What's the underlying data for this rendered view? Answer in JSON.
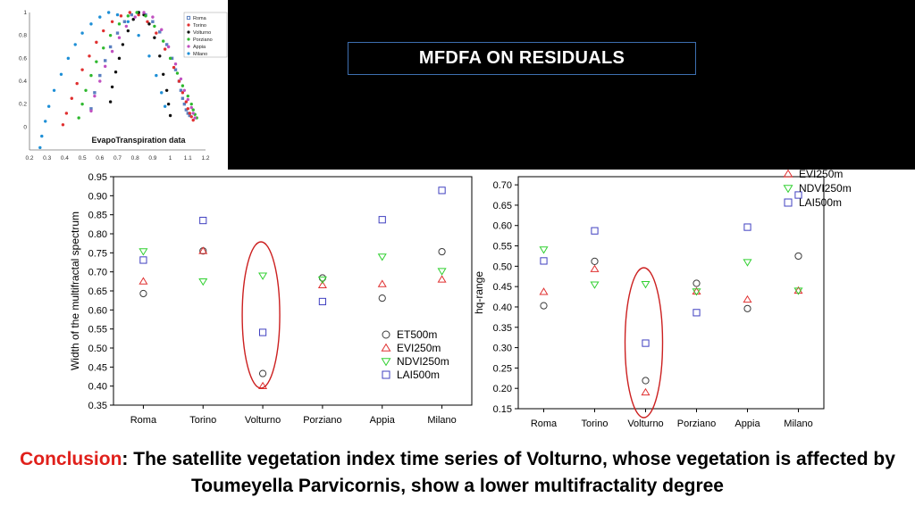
{
  "slide": {
    "title": "MFDFA ON RESIDUALS",
    "conclusion_label": "Conclusion",
    "conclusion_text": ": The satellite vegetation index time series of Volturno, whose vegetation is affected by Toumeyella Parvicornis, show a lower multifractality degree"
  },
  "colors": {
    "ET500m": "#3a3a3a",
    "EVI250m": "#e03030",
    "NDVI250m": "#30d030",
    "LAI500m": "#4040c0",
    "highlight": "#cc2020"
  },
  "chart_data": [
    {
      "id": "inset",
      "type": "scatter",
      "title": "EvapoTranspiration data",
      "xlim": [
        0.2,
        1.2
      ],
      "ylim": [
        -0.2,
        1
      ],
      "xticks": [
        "0.2",
        "0.3",
        "0.4",
        "0.5",
        "0.6",
        "0.7",
        "0.8",
        "0.9",
        "1",
        "1.1",
        "1.2"
      ],
      "yticks": [
        "0",
        "0.2",
        "0.4",
        "0.6",
        "0.8",
        "1"
      ],
      "ytick_values": [
        0,
        0.2,
        0.4,
        0.6,
        0.8,
        1
      ],
      "legend_placement": "top-right",
      "series": [
        {
          "name": "Roma",
          "color": "#5a7fc0",
          "marker": "square",
          "x": [
            0.55,
            0.57,
            0.6,
            0.63,
            0.66,
            0.7,
            0.74,
            0.78,
            0.82,
            0.86,
            0.9,
            0.94,
            0.98,
            1.01,
            1.03,
            1.05,
            1.06,
            1.07,
            1.08,
            1.09,
            1.1,
            1.11
          ],
          "y": [
            0.16,
            0.3,
            0.45,
            0.58,
            0.7,
            0.82,
            0.92,
            0.98,
            1.0,
            0.98,
            0.92,
            0.83,
            0.72,
            0.6,
            0.5,
            0.4,
            0.32,
            0.25,
            0.2,
            0.15,
            0.12,
            0.1
          ]
        },
        {
          "name": "Torino",
          "color": "#e03030",
          "marker": "circle",
          "x": [
            0.39,
            0.41,
            0.44,
            0.47,
            0.5,
            0.54,
            0.58,
            0.62,
            0.67,
            0.72,
            0.77,
            0.82,
            0.87,
            0.92,
            0.97,
            1.02,
            1.05,
            1.07,
            1.09,
            1.1,
            1.11,
            1.12,
            1.13
          ],
          "y": [
            0.02,
            0.12,
            0.25,
            0.38,
            0.5,
            0.62,
            0.74,
            0.84,
            0.92,
            0.97,
            1.0,
            0.98,
            0.92,
            0.82,
            0.68,
            0.52,
            0.4,
            0.3,
            0.22,
            0.16,
            0.12,
            0.09,
            0.06
          ]
        },
        {
          "name": "Volturno",
          "color": "#111111",
          "marker": "circle",
          "x": [
            0.66,
            0.67,
            0.69,
            0.71,
            0.73,
            0.76,
            0.79,
            0.82,
            0.85,
            0.88,
            0.91,
            0.94,
            0.96,
            0.98,
            0.99,
            1.0
          ],
          "y": [
            0.22,
            0.35,
            0.48,
            0.6,
            0.72,
            0.84,
            0.94,
            1.0,
            0.98,
            0.9,
            0.78,
            0.62,
            0.46,
            0.32,
            0.2,
            0.1
          ]
        },
        {
          "name": "Porziano",
          "color": "#2eb82e",
          "marker": "circle",
          "x": [
            0.48,
            0.5,
            0.52,
            0.55,
            0.58,
            0.62,
            0.66,
            0.71,
            0.76,
            0.81,
            0.86,
            0.91,
            0.96,
            1.0,
            1.04,
            1.07,
            1.1,
            1.12,
            1.13,
            1.14,
            1.15
          ],
          "y": [
            0.08,
            0.2,
            0.32,
            0.45,
            0.57,
            0.69,
            0.8,
            0.9,
            0.97,
            1.0,
            0.97,
            0.88,
            0.75,
            0.6,
            0.47,
            0.36,
            0.27,
            0.2,
            0.15,
            0.11,
            0.08
          ]
        },
        {
          "name": "Appia",
          "color": "#c050c0",
          "marker": "circle",
          "x": [
            0.55,
            0.57,
            0.6,
            0.63,
            0.67,
            0.71,
            0.75,
            0.8,
            0.85,
            0.9,
            0.95,
            0.99,
            1.03,
            1.06,
            1.08,
            1.1,
            1.12,
            1.13,
            1.14
          ],
          "y": [
            0.14,
            0.27,
            0.4,
            0.53,
            0.66,
            0.78,
            0.88,
            0.96,
            1.0,
            0.96,
            0.85,
            0.7,
            0.55,
            0.42,
            0.32,
            0.24,
            0.17,
            0.12,
            0.08
          ]
        },
        {
          "name": "Milano",
          "color": "#1e8fd6",
          "marker": "circle",
          "x": [
            0.26,
            0.27,
            0.29,
            0.31,
            0.34,
            0.38,
            0.42,
            0.46,
            0.5,
            0.55,
            0.6,
            0.65,
            0.7,
            0.76,
            0.82,
            0.88,
            0.92,
            0.95,
            0.97
          ],
          "y": [
            -0.18,
            -0.08,
            0.05,
            0.18,
            0.32,
            0.46,
            0.6,
            0.72,
            0.82,
            0.9,
            0.96,
            1.0,
            0.98,
            0.92,
            0.8,
            0.62,
            0.45,
            0.3,
            0.18
          ]
        }
      ]
    },
    {
      "id": "width",
      "type": "scatter",
      "ylabel": "Width of the multifractal spectrum",
      "categories": [
        "Roma",
        "Torino",
        "Volturno",
        "Porziano",
        "Appia",
        "Milano"
      ],
      "ylim": [
        0.35,
        0.95
      ],
      "yticks": [
        "0.35",
        "0.40",
        "0.45",
        "0.50",
        "0.55",
        "0.60",
        "0.65",
        "0.70",
        "0.75",
        "0.80",
        "0.85",
        "0.90",
        "0.95"
      ],
      "ytick_values": [
        0.35,
        0.4,
        0.45,
        0.5,
        0.55,
        0.6,
        0.65,
        0.7,
        0.75,
        0.8,
        0.85,
        0.9,
        0.95
      ],
      "legend_placement": "bottom-right",
      "highlight_category": "Volturno",
      "series": [
        {
          "name": "ET500m",
          "marker": "circle",
          "values": [
            0.643,
            0.755,
            0.433,
            0.684,
            0.631,
            0.753
          ]
        },
        {
          "name": "EVI250m",
          "marker": "triangle-up",
          "values": [
            0.675,
            0.755,
            0.4,
            0.665,
            0.668,
            0.68
          ]
        },
        {
          "name": "NDVI250m",
          "marker": "triangle-down",
          "values": [
            0.754,
            0.675,
            0.69,
            0.68,
            0.74,
            0.702
          ]
        },
        {
          "name": "LAI500m",
          "marker": "square",
          "values": [
            0.731,
            0.835,
            0.541,
            0.622,
            0.837,
            0.914
          ]
        }
      ]
    },
    {
      "id": "hq",
      "type": "scatter",
      "ylabel": "hq-range",
      "categories": [
        "Roma",
        "Torino",
        "Volturno",
        "Porziano",
        "Appia",
        "Milano"
      ],
      "ylim": [
        0.15,
        0.72
      ],
      "yticks": [
        "0.15",
        "0.20",
        "0.25",
        "0.30",
        "0.35",
        "0.40",
        "0.45",
        "0.50",
        "0.55",
        "0.60",
        "0.65",
        "0.70"
      ],
      "ytick_values": [
        0.15,
        0.2,
        0.25,
        0.3,
        0.35,
        0.4,
        0.45,
        0.5,
        0.55,
        0.6,
        0.65,
        0.7
      ],
      "legend_placement": "top-right",
      "legend_series": [
        "EVI250m",
        "NDVI250m",
        "LAI500m"
      ],
      "highlight_category": "Volturno",
      "series": [
        {
          "name": "ET500m",
          "marker": "circle",
          "values": [
            0.403,
            0.512,
            0.219,
            0.458,
            0.396,
            0.525
          ]
        },
        {
          "name": "EVI250m",
          "marker": "triangle-up",
          "values": [
            0.437,
            0.493,
            0.19,
            0.438,
            0.418,
            0.44
          ]
        },
        {
          "name": "NDVI250m",
          "marker": "triangle-down",
          "values": [
            0.541,
            0.455,
            0.456,
            0.438,
            0.51,
            0.44
          ]
        },
        {
          "name": "LAI500m",
          "marker": "square",
          "values": [
            0.513,
            0.587,
            0.311,
            0.386,
            0.596,
            0.675
          ]
        }
      ]
    }
  ]
}
